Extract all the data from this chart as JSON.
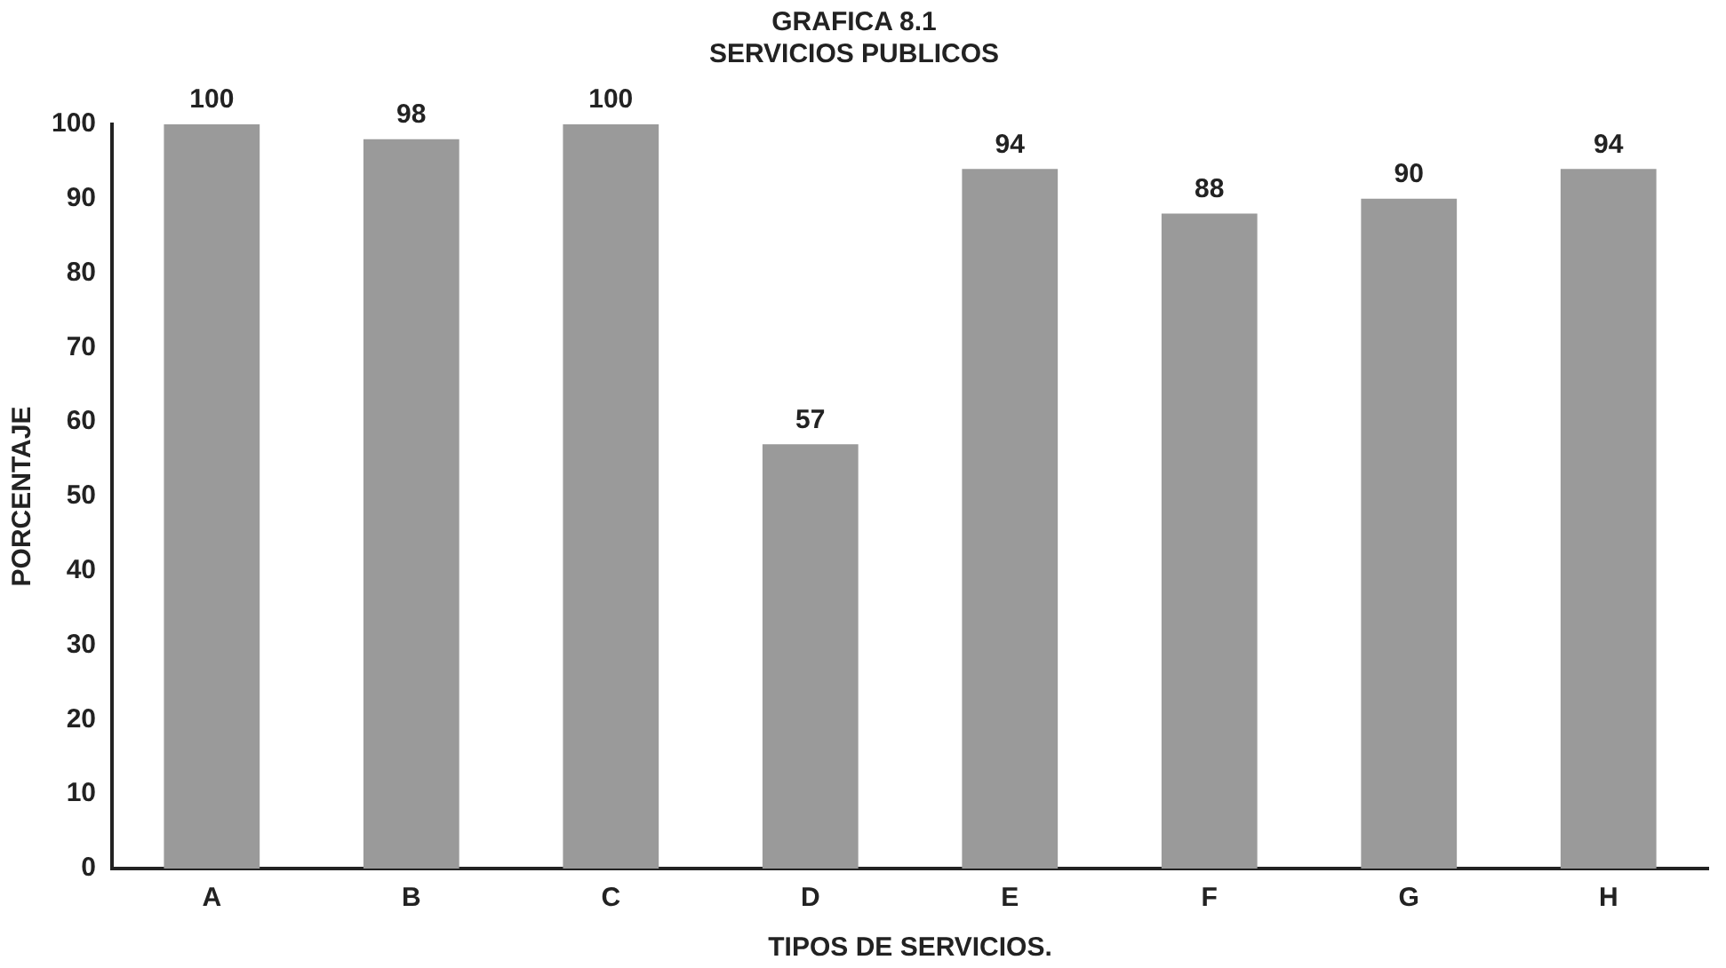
{
  "chart_data": {
    "type": "bar",
    "title": [
      "GRAFICA 8.1",
      "SERVICIOS PUBLICOS"
    ],
    "xlabel": "TIPOS DE SERVICIOS.",
    "ylabel": "PORCENTAJE",
    "categories": [
      "A",
      "B",
      "C",
      "D",
      "E",
      "F",
      "G",
      "H"
    ],
    "values": [
      100,
      98,
      100,
      57,
      94,
      88,
      90,
      94
    ],
    "color": "#9a9a9a",
    "ylim": [
      0,
      100
    ],
    "yticks": [
      0,
      10,
      20,
      30,
      40,
      50,
      60,
      70,
      80,
      90,
      100
    ],
    "grid": false,
    "legend": false,
    "data_labels": true
  }
}
